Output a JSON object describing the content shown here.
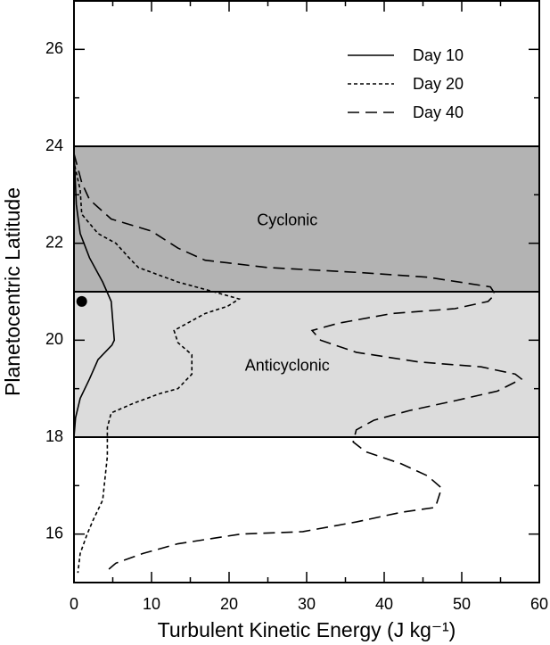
{
  "chart_data": {
    "type": "line",
    "xlabel": "Turbulent Kinetic Energy (J kg⁻¹)",
    "ylabel": "Planetocentric Latitude",
    "xlim": [
      0,
      60
    ],
    "ylim": [
      15,
      27
    ],
    "xticks": [
      0,
      10,
      20,
      30,
      40,
      50,
      60
    ],
    "yticks": [
      16,
      18,
      20,
      22,
      24,
      26
    ],
    "x_minor_ticks": [
      5,
      15,
      25,
      35,
      45,
      55
    ],
    "y_minor_ticks": [
      15,
      17,
      19,
      21,
      23,
      25,
      27
    ],
    "legend": "top-right",
    "regions": [
      {
        "label": "Cyclonic",
        "range": [
          21,
          24
        ],
        "color": "#b3b3b3"
      },
      {
        "label": "Anticyclonic",
        "range": [
          18,
          21
        ],
        "color": "#dcdcdc"
      }
    ],
    "marker": {
      "x": 1,
      "y": 20.8,
      "color": "#000000"
    },
    "series": [
      {
        "name": "Day 10",
        "color": "#000000",
        "dash": "solid",
        "x": [
          0,
          0.3,
          0.8,
          2,
          3.7,
          4.8,
          5.2,
          4.9,
          3.1,
          2,
          0.8,
          0.2,
          0
        ],
        "y": [
          23.9,
          22.8,
          22.2,
          21.7,
          21.2,
          20.8,
          20.0,
          19.9,
          19.6,
          19.2,
          18.8,
          18.4,
          18
        ]
      },
      {
        "name": "Day 20",
        "color": "#000000",
        "dash": "short",
        "x": [
          0.1,
          0.8,
          1,
          3.1,
          5.4,
          7.1,
          8.3,
          13.4,
          18,
          21.3,
          19.8,
          16.9,
          12.9,
          13.4,
          15.2,
          15.2,
          13.4,
          11.1,
          7.7,
          4.8,
          4.3,
          4.3,
          3.7,
          2.5,
          1.7,
          0.8,
          0.5
        ],
        "y": [
          23.6,
          23.1,
          22.6,
          22.2,
          22.0,
          21.7,
          21.5,
          21.2,
          21.0,
          20.85,
          20.7,
          20.55,
          20.2,
          19.95,
          19.7,
          19.3,
          19.0,
          18.9,
          18.7,
          18.5,
          18.2,
          17.6,
          16.7,
          16.3,
          16.0,
          15.6,
          15.2
        ]
      },
      {
        "name": "Day 40",
        "color": "#000000",
        "dash": "long",
        "x": [
          0,
          1,
          2,
          4.8,
          10,
          13.4,
          16.9,
          24.9,
          36.4,
          45.6,
          53.7,
          54.3,
          53.4,
          49.1,
          41,
          34.1,
          30.7,
          31.8,
          36.4,
          44.5,
          52.5,
          56.9,
          57.7,
          54.6,
          49.1,
          43.3,
          38.7,
          36.4,
          36,
          37.6,
          42.2,
          45.6,
          47.4,
          46.6,
          42.2,
          36.4,
          29.5,
          21.5,
          13.4,
          8.9,
          5.4,
          4.3
        ],
        "y": [
          23.85,
          23.25,
          22.9,
          22.5,
          22.25,
          21.9,
          21.65,
          21.5,
          21.4,
          21.3,
          21.1,
          20.95,
          20.8,
          20.65,
          20.55,
          20.35,
          20.2,
          20.0,
          19.75,
          19.55,
          19.45,
          19.3,
          19.2,
          18.95,
          18.75,
          18.55,
          18.35,
          18.15,
          17.9,
          17.7,
          17.45,
          17.2,
          16.95,
          16.55,
          16.45,
          16.25,
          16.05,
          16.0,
          15.8,
          15.6,
          15.4,
          15.25
        ]
      }
    ]
  }
}
